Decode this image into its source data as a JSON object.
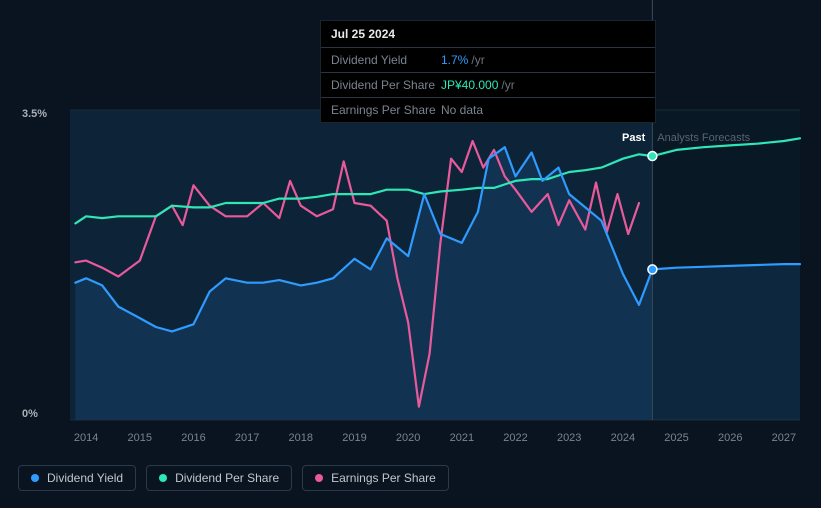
{
  "tooltip": {
    "date": "Jul 25 2024",
    "rows": [
      {
        "label": "Dividend Yield",
        "value": "1.7%",
        "unit": "/yr",
        "color": "#2f9bff"
      },
      {
        "label": "Dividend Per Share",
        "value": "JP¥40.000",
        "unit": "/yr",
        "color": "#2ee6b6"
      },
      {
        "label": "Earnings Per Share",
        "value": "No data",
        "unit": "",
        "color": "#7a8490"
      }
    ]
  },
  "toggle": {
    "past": "Past",
    "forecast": "Analysts Forecasts"
  },
  "yaxis": {
    "max_label": "3.5%",
    "min_label": "0%",
    "min": 0,
    "max": 3.5,
    "label_fontsize": 11
  },
  "xaxis": {
    "labels": [
      "2014",
      "2015",
      "2016",
      "2017",
      "2018",
      "2019",
      "2020",
      "2021",
      "2022",
      "2023",
      "2024",
      "2025",
      "2026",
      "2027"
    ],
    "min": 2013.7,
    "max": 2027.3
  },
  "chart": {
    "background": "#0a1420",
    "plot_fill_past": "#0d2438",
    "plot_fill_forecast": "#081824",
    "grid_color": "#1a2a38",
    "divider_x": 2024.55,
    "hover_x": 2024.55,
    "colors": {
      "dividend_yield": "#2f9bff",
      "dividend_per_share": "#2ee6b6",
      "earnings_per_share": "#e85a9b"
    },
    "line_width": 2.2,
    "marker_radius": 4.5,
    "marker_stroke": "#ffffff"
  },
  "series": {
    "dividend_yield": {
      "label": "Dividend Yield",
      "points": [
        [
          2013.8,
          1.55
        ],
        [
          2014.0,
          1.6
        ],
        [
          2014.3,
          1.52
        ],
        [
          2014.6,
          1.28
        ],
        [
          2015.0,
          1.15
        ],
        [
          2015.3,
          1.05
        ],
        [
          2015.6,
          1.0
        ],
        [
          2016.0,
          1.08
        ],
        [
          2016.3,
          1.45
        ],
        [
          2016.6,
          1.6
        ],
        [
          2017.0,
          1.55
        ],
        [
          2017.3,
          1.55
        ],
        [
          2017.6,
          1.58
        ],
        [
          2018.0,
          1.52
        ],
        [
          2018.3,
          1.55
        ],
        [
          2018.6,
          1.6
        ],
        [
          2019.0,
          1.82
        ],
        [
          2019.3,
          1.7
        ],
        [
          2019.6,
          2.05
        ],
        [
          2020.0,
          1.85
        ],
        [
          2020.3,
          2.55
        ],
        [
          2020.6,
          2.1
        ],
        [
          2021.0,
          2.0
        ],
        [
          2021.3,
          2.35
        ],
        [
          2021.5,
          2.95
        ],
        [
          2021.8,
          3.08
        ],
        [
          2022.0,
          2.75
        ],
        [
          2022.3,
          3.02
        ],
        [
          2022.5,
          2.7
        ],
        [
          2022.8,
          2.85
        ],
        [
          2023.0,
          2.55
        ],
        [
          2023.3,
          2.4
        ],
        [
          2023.6,
          2.25
        ],
        [
          2024.0,
          1.65
        ],
        [
          2024.3,
          1.3
        ],
        [
          2024.55,
          1.7
        ],
        [
          2025.0,
          1.72
        ],
        [
          2025.5,
          1.73
        ],
        [
          2026.0,
          1.74
        ],
        [
          2026.5,
          1.75
        ],
        [
          2027.0,
          1.76
        ],
        [
          2027.3,
          1.76
        ]
      ],
      "marker_at": [
        2024.55,
        1.7
      ]
    },
    "dividend_per_share": {
      "label": "Dividend Per Share",
      "points": [
        [
          2013.8,
          2.22
        ],
        [
          2014.0,
          2.3
        ],
        [
          2014.3,
          2.28
        ],
        [
          2014.6,
          2.3
        ],
        [
          2015.0,
          2.3
        ],
        [
          2015.3,
          2.3
        ],
        [
          2015.6,
          2.42
        ],
        [
          2016.0,
          2.4
        ],
        [
          2016.3,
          2.4
        ],
        [
          2016.6,
          2.45
        ],
        [
          2017.0,
          2.45
        ],
        [
          2017.3,
          2.45
        ],
        [
          2017.6,
          2.5
        ],
        [
          2018.0,
          2.5
        ],
        [
          2018.3,
          2.52
        ],
        [
          2018.6,
          2.55
        ],
        [
          2019.0,
          2.55
        ],
        [
          2019.3,
          2.55
        ],
        [
          2019.6,
          2.6
        ],
        [
          2020.0,
          2.6
        ],
        [
          2020.3,
          2.55
        ],
        [
          2020.6,
          2.58
        ],
        [
          2021.0,
          2.6
        ],
        [
          2021.3,
          2.62
        ],
        [
          2021.6,
          2.62
        ],
        [
          2022.0,
          2.7
        ],
        [
          2022.3,
          2.72
        ],
        [
          2022.6,
          2.72
        ],
        [
          2023.0,
          2.8
        ],
        [
          2023.3,
          2.82
        ],
        [
          2023.6,
          2.85
        ],
        [
          2024.0,
          2.95
        ],
        [
          2024.3,
          3.0
        ],
        [
          2024.55,
          2.98
        ],
        [
          2025.0,
          3.05
        ],
        [
          2025.5,
          3.08
        ],
        [
          2026.0,
          3.1
        ],
        [
          2026.5,
          3.12
        ],
        [
          2027.0,
          3.15
        ],
        [
          2027.3,
          3.18
        ]
      ],
      "marker_at": [
        2024.55,
        2.98
      ]
    },
    "earnings_per_share": {
      "label": "Earnings Per Share",
      "points": [
        [
          2013.8,
          1.78
        ],
        [
          2014.0,
          1.8
        ],
        [
          2014.3,
          1.72
        ],
        [
          2014.6,
          1.62
        ],
        [
          2015.0,
          1.8
        ],
        [
          2015.3,
          2.3
        ],
        [
          2015.6,
          2.42
        ],
        [
          2015.8,
          2.2
        ],
        [
          2016.0,
          2.65
        ],
        [
          2016.3,
          2.42
        ],
        [
          2016.6,
          2.3
        ],
        [
          2017.0,
          2.3
        ],
        [
          2017.3,
          2.45
        ],
        [
          2017.6,
          2.28
        ],
        [
          2017.8,
          2.7
        ],
        [
          2018.0,
          2.42
        ],
        [
          2018.3,
          2.3
        ],
        [
          2018.6,
          2.38
        ],
        [
          2018.8,
          2.92
        ],
        [
          2019.0,
          2.45
        ],
        [
          2019.3,
          2.42
        ],
        [
          2019.6,
          2.25
        ],
        [
          2019.8,
          1.6
        ],
        [
          2020.0,
          1.1
        ],
        [
          2020.2,
          0.15
        ],
        [
          2020.4,
          0.75
        ],
        [
          2020.6,
          2.0
        ],
        [
          2020.8,
          2.95
        ],
        [
          2021.0,
          2.8
        ],
        [
          2021.2,
          3.15
        ],
        [
          2021.4,
          2.85
        ],
        [
          2021.6,
          3.05
        ],
        [
          2021.8,
          2.75
        ],
        [
          2022.0,
          2.6
        ],
        [
          2022.3,
          2.35
        ],
        [
          2022.6,
          2.55
        ],
        [
          2022.8,
          2.2
        ],
        [
          2023.0,
          2.48
        ],
        [
          2023.3,
          2.15
        ],
        [
          2023.5,
          2.68
        ],
        [
          2023.7,
          2.12
        ],
        [
          2023.9,
          2.55
        ],
        [
          2024.1,
          2.1
        ],
        [
          2024.3,
          2.45
        ]
      ]
    }
  },
  "legend": [
    {
      "key": "dividend_yield",
      "label": "Dividend Yield"
    },
    {
      "key": "dividend_per_share",
      "label": "Dividend Per Share"
    },
    {
      "key": "earnings_per_share",
      "label": "Earnings Per Share"
    }
  ]
}
